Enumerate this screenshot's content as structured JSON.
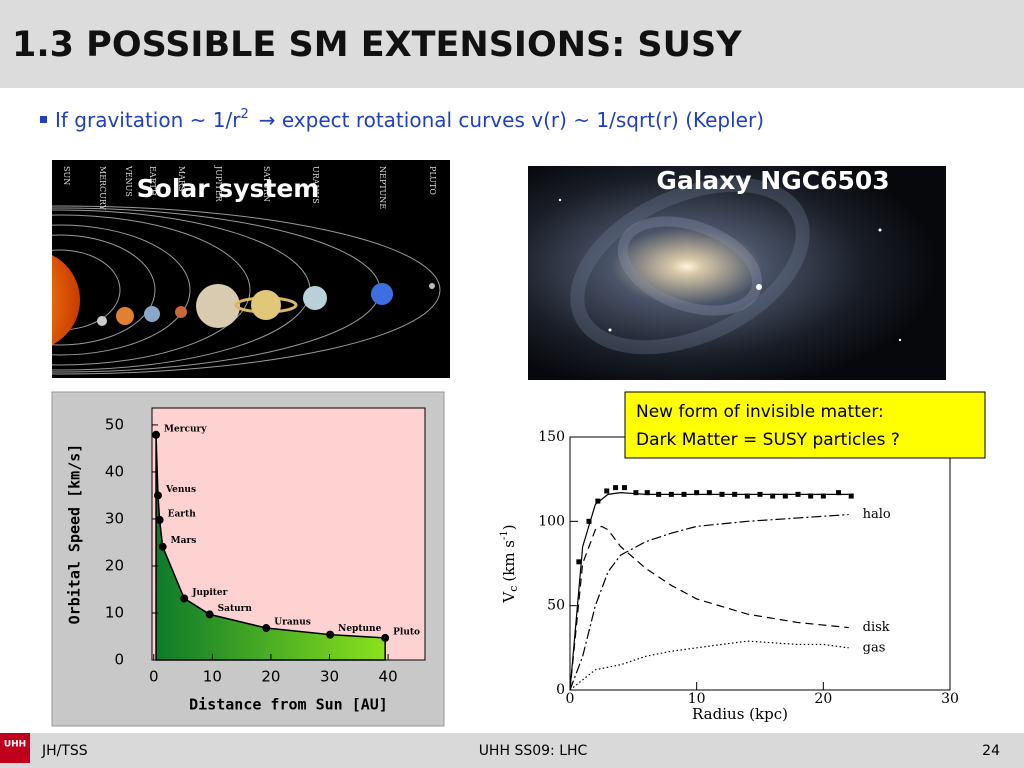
{
  "header": {
    "title": "1.3 POSSIBLE SM EXTENSIONS: SUSY"
  },
  "bullet": {
    "before": "If gravitation ~ 1/r",
    "sup": "2",
    "after": "→ expect rotational curves v(r) ~ 1/sqrt(r) (Kepler)"
  },
  "images": {
    "solar": {
      "caption": "Solar system",
      "labels": [
        "SUN",
        "MERCURY",
        "VENUS",
        "EARTH",
        "MARS",
        "JUPITER",
        "SATURN",
        "URANUS",
        "NEPTUNE",
        "PLUTO"
      ]
    },
    "galaxy": {
      "caption": "Galaxy NGC6503"
    }
  },
  "callout": {
    "lines": [
      "New form of invisible matter:",
      "Dark Matter = SUSY particles ?"
    ]
  },
  "chart_data": [
    {
      "type": "scatter",
      "xlabel": "Distance from Sun [AU]",
      "ylabel": "Orbital Speed [km/s]",
      "x": [
        0.39,
        0.72,
        1,
        1.52,
        5.2,
        9.54,
        19.2,
        30.1,
        39.5
      ],
      "values": [
        47.9,
        35,
        29.8,
        24.1,
        13.1,
        9.7,
        6.8,
        5.4,
        4.7
      ],
      "labels": [
        "Mercury",
        "Venus",
        "Earth",
        "Mars",
        "Jupiter",
        "Saturn",
        "Uranus",
        "Neptune",
        "Pluto"
      ],
      "xlim": [
        -0.3,
        46.3
      ],
      "ylim": [
        0,
        53.6
      ],
      "xticks": [
        0,
        10,
        20,
        30,
        40
      ],
      "yticks": [
        0,
        10,
        20,
        30,
        40,
        50
      ],
      "color": "#000000",
      "fill": "#2fa52a",
      "background": "#ffd2d2"
    },
    {
      "type": "line",
      "xlabel": "Radius (kpc)",
      "ylabel": [
        "V",
        "c",
        "(km s",
        "-1",
        ")"
      ],
      "xlim": [
        0,
        30
      ],
      "ylim": [
        0,
        150
      ],
      "xticks": [
        0,
        10,
        20,
        30
      ],
      "yticks": [
        0,
        50,
        100,
        150
      ],
      "series": [
        {
          "style": "markers",
          "color": "#000000",
          "x": [
            0.7,
            1.5,
            2.2,
            2.9,
            3.6,
            4.3,
            5.2,
            6.1,
            7.0,
            8.0,
            9.0,
            10.0,
            11.0,
            12.0,
            13.0,
            14.0,
            15.0,
            16.0,
            17.0,
            18.0,
            19.0,
            20.0,
            21.2,
            22.2
          ],
          "values": [
            76,
            100,
            112,
            118,
            120,
            120,
            117,
            117,
            116,
            116,
            116,
            117,
            117,
            116,
            116,
            115,
            116,
            115,
            115,
            116,
            115,
            115,
            117,
            115
          ]
        },
        {
          "style": "solid",
          "color": "#000000",
          "x": [
            0,
            1,
            2,
            3,
            4,
            6,
            10,
            15,
            20,
            22
          ],
          "values": [
            0,
            85,
            110,
            116,
            117,
            116,
            116,
            116,
            116,
            116
          ]
        },
        {
          "name": "halo",
          "style": "dashdot",
          "color": "#000000",
          "x": [
            0,
            1,
            2,
            3,
            4,
            6,
            8,
            10,
            14,
            18,
            22
          ],
          "values": [
            0,
            20,
            50,
            70,
            80,
            88,
            93,
            97,
            100,
            102,
            104
          ]
        },
        {
          "name": "disk",
          "style": "dashed",
          "color": "#000000",
          "x": [
            0,
            1,
            2,
            2.5,
            3,
            4,
            6,
            8,
            10,
            14,
            18,
            22
          ],
          "values": [
            0,
            75,
            95,
            97,
            95,
            85,
            72,
            62,
            54,
            45,
            40,
            37
          ]
        },
        {
          "name": "gas",
          "style": "dotted",
          "color": "#000000",
          "x": [
            0,
            2,
            4,
            6,
            8,
            10,
            12,
            14,
            16,
            18,
            20,
            22
          ],
          "values": [
            0,
            12,
            15,
            20,
            23,
            25,
            27,
            29,
            28,
            27,
            27,
            25
          ]
        }
      ]
    }
  ],
  "footer": {
    "logo": "UHH",
    "left": "JH/TSS",
    "center": "UHH SS09: LHC",
    "page": "24"
  }
}
